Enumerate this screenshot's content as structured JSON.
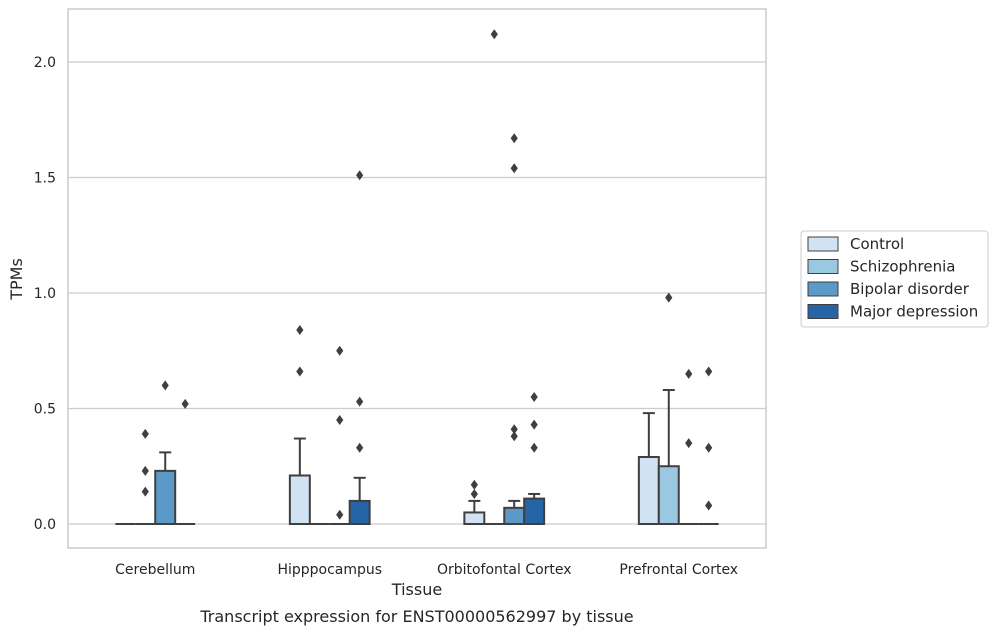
{
  "chart_data": {
    "type": "bar",
    "title": "",
    "caption": "Transcript expression for ENST00000562997 by tissue",
    "xlabel": "Tissue",
    "ylabel": "TPMs",
    "ylim": [
      -0.1,
      2.24
    ],
    "yticks": [
      0.0,
      0.5,
      1.0,
      1.5,
      2.0
    ],
    "ytick_labels": [
      "0.0",
      "0.5",
      "1.0",
      "1.5",
      "2.0"
    ],
    "grid": "horizontal",
    "legend_position": "right",
    "categories": [
      "Cerebellum",
      "Hipppocampus",
      "Orbitofontal Cortex",
      "Prefrontal Cortex"
    ],
    "series": [
      {
        "name": "Control",
        "color": "#d1e2f2",
        "values": [
          0.0,
          0.21,
          0.05,
          0.29
        ],
        "error_upper": [
          0.0,
          0.37,
          0.1,
          0.48
        ],
        "outliers": [
          [],
          [
            0.66,
            0.84
          ],
          [
            0.13,
            0.17
          ],
          []
        ]
      },
      {
        "name": "Schizophrenia",
        "color": "#9ac8e0",
        "values": [
          0.0,
          0.0,
          0.0,
          0.25
        ],
        "error_upper": [
          0.0,
          0.0,
          0.0,
          0.58
        ],
        "outliers": [
          [
            0.14,
            0.23,
            0.39
          ],
          [],
          [
            2.12
          ],
          [
            0.98
          ]
        ]
      },
      {
        "name": "Bipolar disorder",
        "color": "#5b9ac8",
        "values": [
          0.23,
          0.0,
          0.07,
          0.0
        ],
        "error_upper": [
          0.31,
          0.0,
          0.1,
          0.0
        ],
        "outliers": [
          [
            0.6
          ],
          [
            0.04,
            0.45,
            0.75
          ],
          [
            0.38,
            0.41,
            1.54,
            1.67
          ],
          [
            0.35,
            0.65
          ]
        ]
      },
      {
        "name": "Major depression",
        "color": "#2764a6",
        "values": [
          0.0,
          0.1,
          0.11,
          0.0
        ],
        "error_upper": [
          0.0,
          0.2,
          0.13,
          0.0
        ],
        "outliers": [
          [
            0.52
          ],
          [
            0.33,
            0.53,
            1.51
          ],
          [
            0.33,
            0.43,
            0.55
          ],
          [
            0.08,
            0.33,
            0.66
          ]
        ]
      }
    ]
  }
}
